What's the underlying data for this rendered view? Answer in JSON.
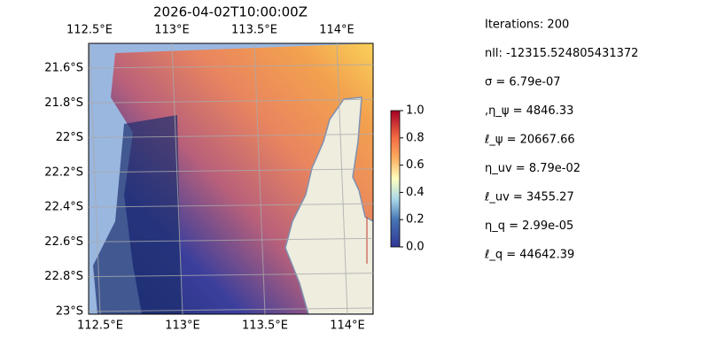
{
  "map": {
    "title": "2026-04-02T10:00:00Z",
    "lon_ticks": [
      {
        "value": 112.5,
        "label": "112.5°E"
      },
      {
        "value": 113,
        "label": "113°E"
      },
      {
        "value": 113.5,
        "label": "113.5°E"
      },
      {
        "value": 114,
        "label": "114°E"
      }
    ],
    "lat_ticks": [
      {
        "value": -21.6,
        "label": "21.6°S"
      },
      {
        "value": -21.8,
        "label": "21.8°S"
      },
      {
        "value": -22,
        "label": "22°S"
      },
      {
        "value": -22.2,
        "label": "22.2°S"
      },
      {
        "value": -22.4,
        "label": "22.4°S"
      },
      {
        "value": -22.6,
        "label": "22.6°S"
      },
      {
        "value": -22.8,
        "label": "22.8°S"
      },
      {
        "value": -23,
        "label": "23°S"
      }
    ],
    "colorbar": {
      "lim": [
        0,
        1
      ],
      "ticks": [
        {
          "value": 0,
          "label": "0.0"
        },
        0.2,
        0.4,
        0.6,
        0.8,
        {
          "value": 1,
          "label": "1.0"
        }
      ]
    },
    "annotations": [
      "Iterations: 200",
      "nll: -12315.524805431372",
      "σ = 6.79e-07",
      ",η_ψ = 4846.33",
      "ℓ_ψ = 20667.66",
      "η_uv = 8.79e-02",
      "ℓ_uv = 3455.27",
      "η_q = 2.99e-05",
      "ℓ_q = 44642.39"
    ]
  }
}
